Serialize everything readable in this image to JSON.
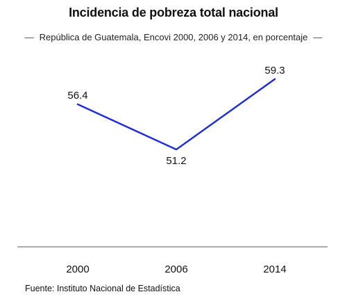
{
  "chart_data": {
    "type": "line",
    "title": "Incidencia de pobreza total nacional",
    "subtitle": "República de Guatemala, Encovi 2000, 2006 y 2014, en porcentaje",
    "categories": [
      "2000",
      "2006",
      "2014"
    ],
    "series": [
      {
        "values": [
          56.4,
          51.2,
          59.3
        ],
        "color": "#1f2fd6"
      }
    ],
    "data_labels": [
      "56.4",
      "51.2",
      "59.3"
    ],
    "xlabel": "",
    "ylabel": "",
    "grid": false,
    "legend": "none"
  },
  "source": "Fuente: Instituto Nacional de Estadística",
  "colors": {
    "line": "#1f2fd6",
    "axis": "#555555",
    "text": "#111111"
  }
}
